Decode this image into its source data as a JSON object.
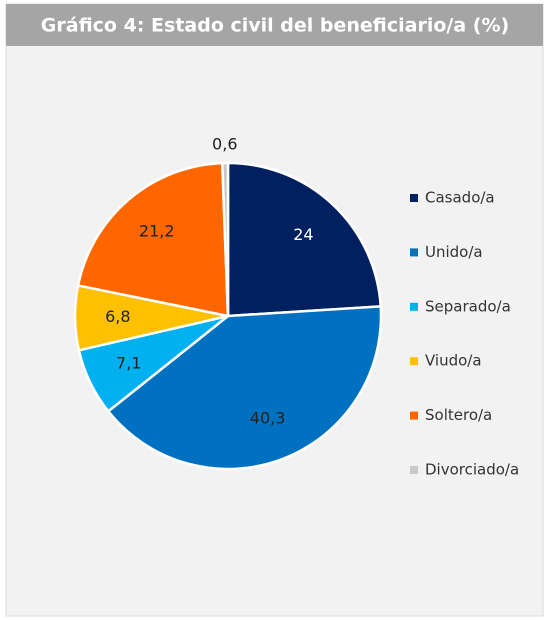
{
  "chart_data": {
    "type": "pie",
    "title": "Gráfico 4: Estado civil del beneficiario/a (%)",
    "categories": [
      "Casado/a",
      "Unido/a",
      "Separado/a",
      "Viudo/a",
      "Soltero/a",
      "Divorciado/a"
    ],
    "values": [
      24,
      40.3,
      7.1,
      6.8,
      21.2,
      0.6
    ],
    "value_labels": [
      "24",
      "40,3",
      "7,1",
      "6,8",
      "21,2",
      "0,6"
    ],
    "colors": [
      "#002060",
      "#0070c0",
      "#00b0f0",
      "#ffc000",
      "#ff6600",
      "#c8c8c8"
    ],
    "legend": "right"
  }
}
